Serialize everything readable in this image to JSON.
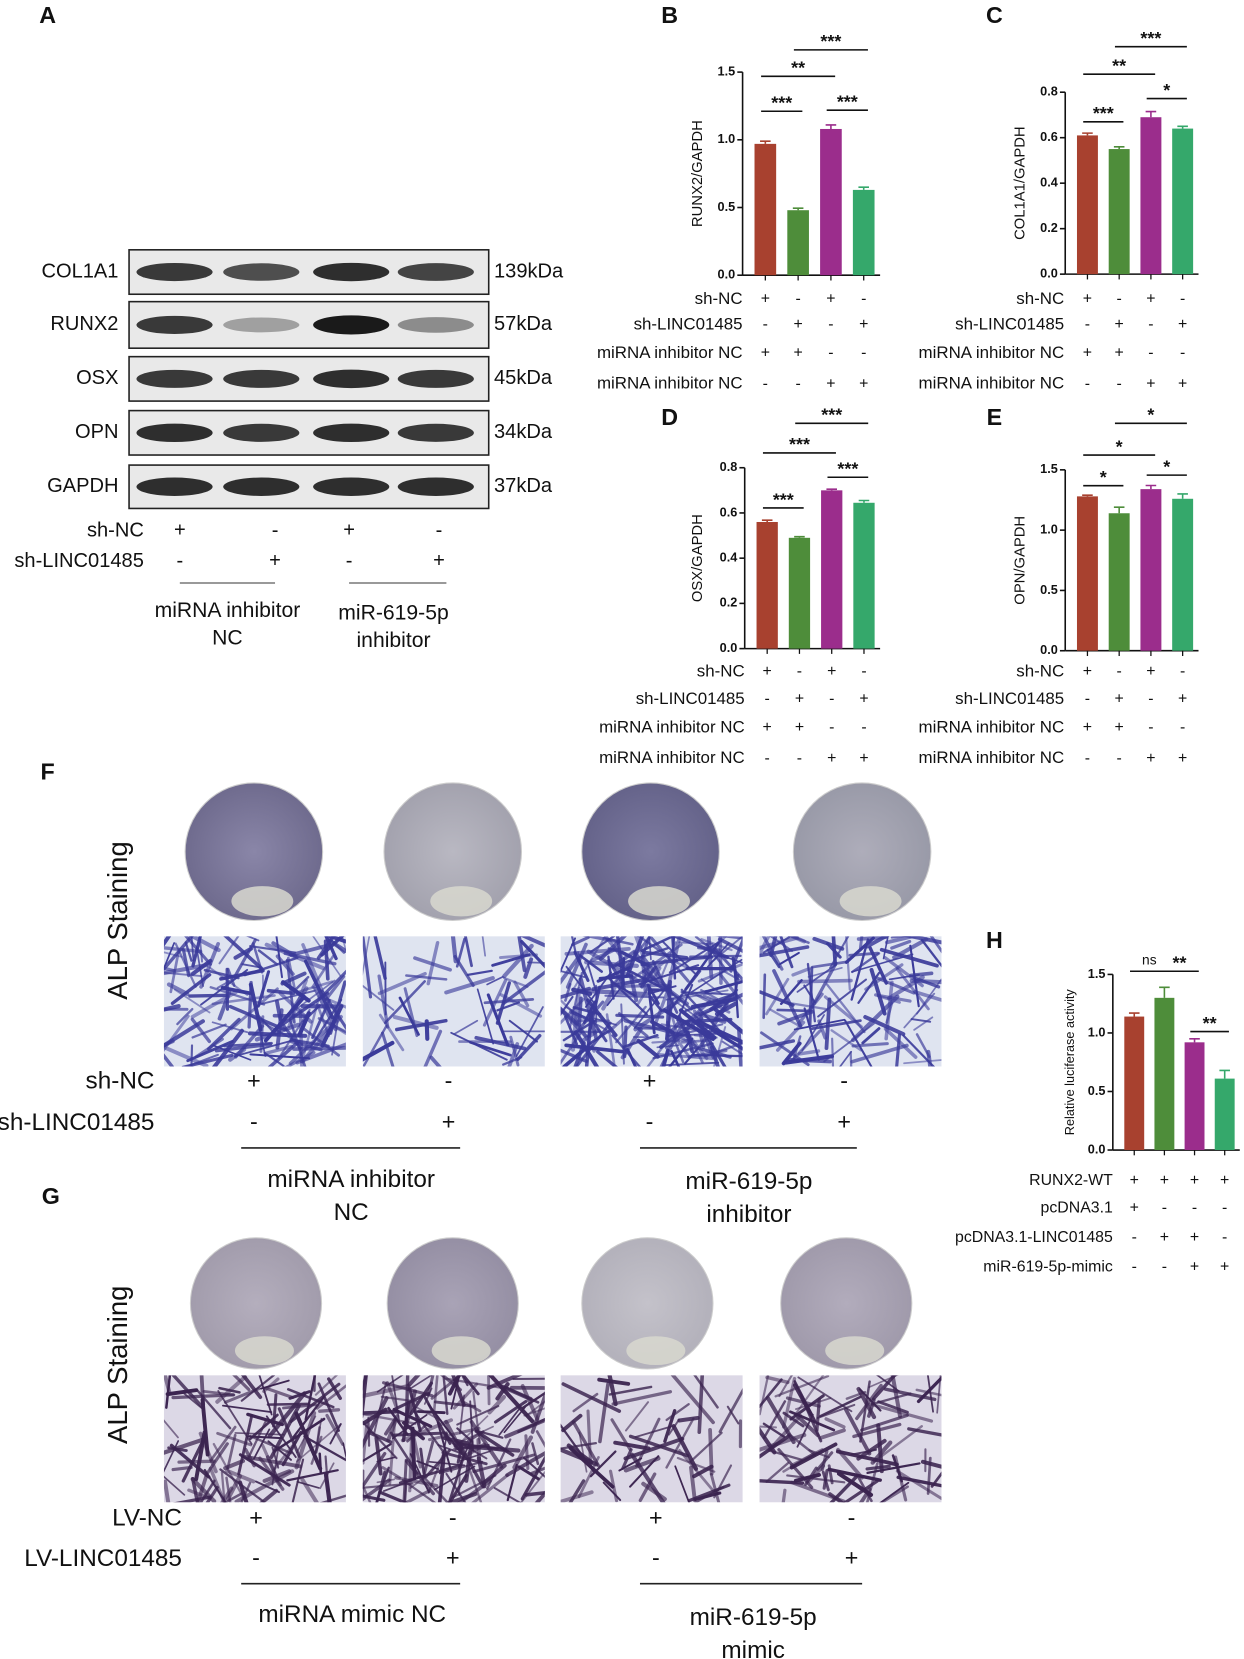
{
  "panel_a": {
    "label": "A",
    "rows": [
      {
        "name": "COL1A1",
        "size": "139kDa"
      },
      {
        "name": "RUNX2",
        "size": "57kDa"
      },
      {
        "name": "OSX",
        "size": "45kDa"
      },
      {
        "name": "OPN",
        "size": "34kDa"
      },
      {
        "name": "GAPDH",
        "size": "37kDa"
      }
    ],
    "conditions": [
      {
        "label": "sh-NC",
        "marks": [
          "+",
          "-",
          "+",
          "-"
        ]
      },
      {
        "label": "sh-LINC01485",
        "marks": [
          "-",
          "+",
          "-",
          "+"
        ]
      }
    ],
    "groups": [
      {
        "lines": [
          "miRNA inhibitor",
          "NC"
        ]
      },
      {
        "lines": [
          "miR-619-5p",
          "inhibitor"
        ]
      }
    ]
  },
  "chart_data": [
    {
      "type": "bar",
      "label": "B",
      "y_label": "RUNX2/GAPDH",
      "values": [
        0.97,
        0.48,
        1.08,
        0.63
      ],
      "errors": [
        0.02,
        0.015,
        0.03,
        0.02
      ],
      "colors": [
        "#a8412f",
        "#4e8d3a",
        "#9b2d8c",
        "#35a86b"
      ],
      "ylim": [
        0,
        1.5
      ],
      "yticks": [
        {
          "value": 0,
          "label": "0.0"
        },
        {
          "value": 0.5,
          "label": "0.5"
        },
        {
          "value": 1,
          "label": "1.0"
        },
        {
          "value": 1.5,
          "label": "1.5"
        }
      ],
      "annotations": [
        "***",
        "**",
        "***",
        "***"
      ],
      "conditions": [
        {
          "label": "sh-NC",
          "marks": [
            "+",
            "-",
            "+",
            "-"
          ]
        },
        {
          "label": "sh-LINC01485",
          "marks": [
            "-",
            "+",
            "-",
            "+"
          ]
        },
        {
          "label": "miRNA inhibitor NC",
          "marks": [
            "+",
            "+",
            "-",
            "-"
          ]
        },
        {
          "label": "miRNA inhibitor NC",
          "marks": [
            "-",
            "-",
            "+",
            "+"
          ]
        }
      ]
    },
    {
      "type": "bar",
      "label": "C",
      "y_label": "COL1A1/GAPDH",
      "values": [
        0.61,
        0.55,
        0.69,
        0.64
      ],
      "errors": [
        0.01,
        0.01,
        0.025,
        0.01
      ],
      "colors": [
        "#a8412f",
        "#4e8d3a",
        "#9b2d8c",
        "#35a86b"
      ],
      "ylim": [
        0,
        0.8
      ],
      "yticks": [
        {
          "value": 0,
          "label": "0.0"
        },
        {
          "value": 0.2,
          "label": "0.2"
        },
        {
          "value": 0.4,
          "label": "0.4"
        },
        {
          "value": 0.6,
          "label": "0.6"
        },
        {
          "value": 0.8,
          "label": "0.8"
        }
      ],
      "annotations": [
        "***",
        "**",
        "***",
        "*"
      ],
      "conditions": [
        {
          "label": "sh-NC",
          "marks": [
            "+",
            "-",
            "+",
            "-"
          ]
        },
        {
          "label": "sh-LINC01485",
          "marks": [
            "-",
            "+",
            "-",
            "+"
          ]
        },
        {
          "label": "miRNA inhibitor NC",
          "marks": [
            "+",
            "+",
            "-",
            "-"
          ]
        },
        {
          "label": "miRNA inhibitor NC",
          "marks": [
            "-",
            "-",
            "+",
            "+"
          ]
        }
      ]
    },
    {
      "type": "bar",
      "label": "D",
      "y_label": "OSX/GAPDH",
      "values": [
        0.56,
        0.49,
        0.7,
        0.645
      ],
      "errors": [
        0.008,
        0.005,
        0.005,
        0.01
      ],
      "colors": [
        "#a8412f",
        "#4e8d3a",
        "#9b2d8c",
        "#35a86b"
      ],
      "ylim": [
        0,
        0.8
      ],
      "yticks": [
        {
          "value": 0,
          "label": "0.0"
        },
        {
          "value": 0.2,
          "label": "0.2"
        },
        {
          "value": 0.4,
          "label": "0.4"
        },
        {
          "value": 0.6,
          "label": "0.6"
        },
        {
          "value": 0.8,
          "label": "0.8"
        }
      ],
      "annotations": [
        "***",
        "***",
        "***",
        "***"
      ],
      "conditions": [
        {
          "label": "sh-NC",
          "marks": [
            "+",
            "-",
            "+",
            "-"
          ]
        },
        {
          "label": "sh-LINC01485",
          "marks": [
            "-",
            "+",
            "-",
            "+"
          ]
        },
        {
          "label": "miRNA inhibitor NC",
          "marks": [
            "+",
            "+",
            "-",
            "-"
          ]
        },
        {
          "label": "miRNA inhibitor NC",
          "marks": [
            "-",
            "-",
            "+",
            "+"
          ]
        }
      ]
    },
    {
      "type": "bar",
      "label": "E",
      "y_label": "OPN/GAPDH",
      "values": [
        1.28,
        1.14,
        1.34,
        1.26
      ],
      "errors": [
        0.01,
        0.05,
        0.03,
        0.04
      ],
      "colors": [
        "#a8412f",
        "#4e8d3a",
        "#9b2d8c",
        "#35a86b"
      ],
      "ylim": [
        0,
        1.5
      ],
      "yticks": [
        {
          "value": 0,
          "label": "0.0"
        },
        {
          "value": 0.5,
          "label": "0.5"
        },
        {
          "value": 1,
          "label": "1.0"
        },
        {
          "value": 1.5,
          "label": "1.5"
        }
      ],
      "annotations": [
        "*",
        "*",
        "*",
        "*"
      ],
      "conditions": [
        {
          "label": "sh-NC",
          "marks": [
            "+",
            "-",
            "+",
            "-"
          ]
        },
        {
          "label": "sh-LINC01485",
          "marks": [
            "-",
            "+",
            "-",
            "+"
          ]
        },
        {
          "label": "miRNA inhibitor NC",
          "marks": [
            "+",
            "+",
            "-",
            "-"
          ]
        },
        {
          "label": "miRNA inhibitor NC",
          "marks": [
            "-",
            "-",
            "+",
            "+"
          ]
        }
      ]
    },
    {
      "type": "bar",
      "label": "H",
      "y_label": "Relative luciferase activity",
      "values": [
        1.14,
        1.3,
        0.92,
        0.61
      ],
      "errors": [
        0.03,
        0.09,
        0.03,
        0.07
      ],
      "colors": [
        "#a8412f",
        "#4e8d3a",
        "#9b2d8c",
        "#35a86b"
      ],
      "ylim": [
        0,
        1.5
      ],
      "yticks": [
        {
          "value": 0,
          "label": "0.0"
        },
        {
          "value": 0.5,
          "label": "0.5"
        },
        {
          "value": 1,
          "label": "1.0"
        },
        {
          "value": 1.5,
          "label": "1.5"
        }
      ],
      "annotations": [
        "ns",
        "**",
        "**"
      ],
      "conditions": [
        {
          "label": "RUNX2-WT",
          "marks": [
            "+",
            "+",
            "+",
            "+"
          ]
        },
        {
          "label": "pcDNA3.1",
          "marks": [
            "+",
            "-",
            "-",
            "-"
          ]
        },
        {
          "label": "pcDNA3.1-LINC01485",
          "marks": [
            "-",
            "+",
            "+",
            "-"
          ]
        },
        {
          "label": "miR-619-5p-mimic",
          "marks": [
            "-",
            "-",
            "+",
            "+"
          ]
        }
      ]
    }
  ],
  "panel_f": {
    "label": "F",
    "y_label": "ALP Staining",
    "conditions": [
      {
        "label": "sh-NC",
        "marks": [
          "+",
          "-",
          "+",
          "-"
        ]
      },
      {
        "label": "sh-LINC01485",
        "marks": [
          "-",
          "+",
          "-",
          "+"
        ]
      }
    ],
    "groups": [
      {
        "lines": [
          "miRNA inhibitor",
          "NC"
        ]
      },
      {
        "lines": [
          "miR-619-5p",
          "inhibitor"
        ]
      }
    ]
  },
  "panel_g": {
    "label": "G",
    "y_label": "ALP Staining",
    "conditions": [
      {
        "label": "LV-NC",
        "marks": [
          "+",
          "-",
          "+",
          "-"
        ]
      },
      {
        "label": "LV-LINC01485",
        "marks": [
          "-",
          "+",
          "-",
          "+"
        ]
      }
    ],
    "groups": [
      {
        "lines": [
          "miRNA mimic NC"
        ]
      },
      {
        "lines": [
          "miR-619-5p",
          "mimic"
        ]
      }
    ]
  }
}
